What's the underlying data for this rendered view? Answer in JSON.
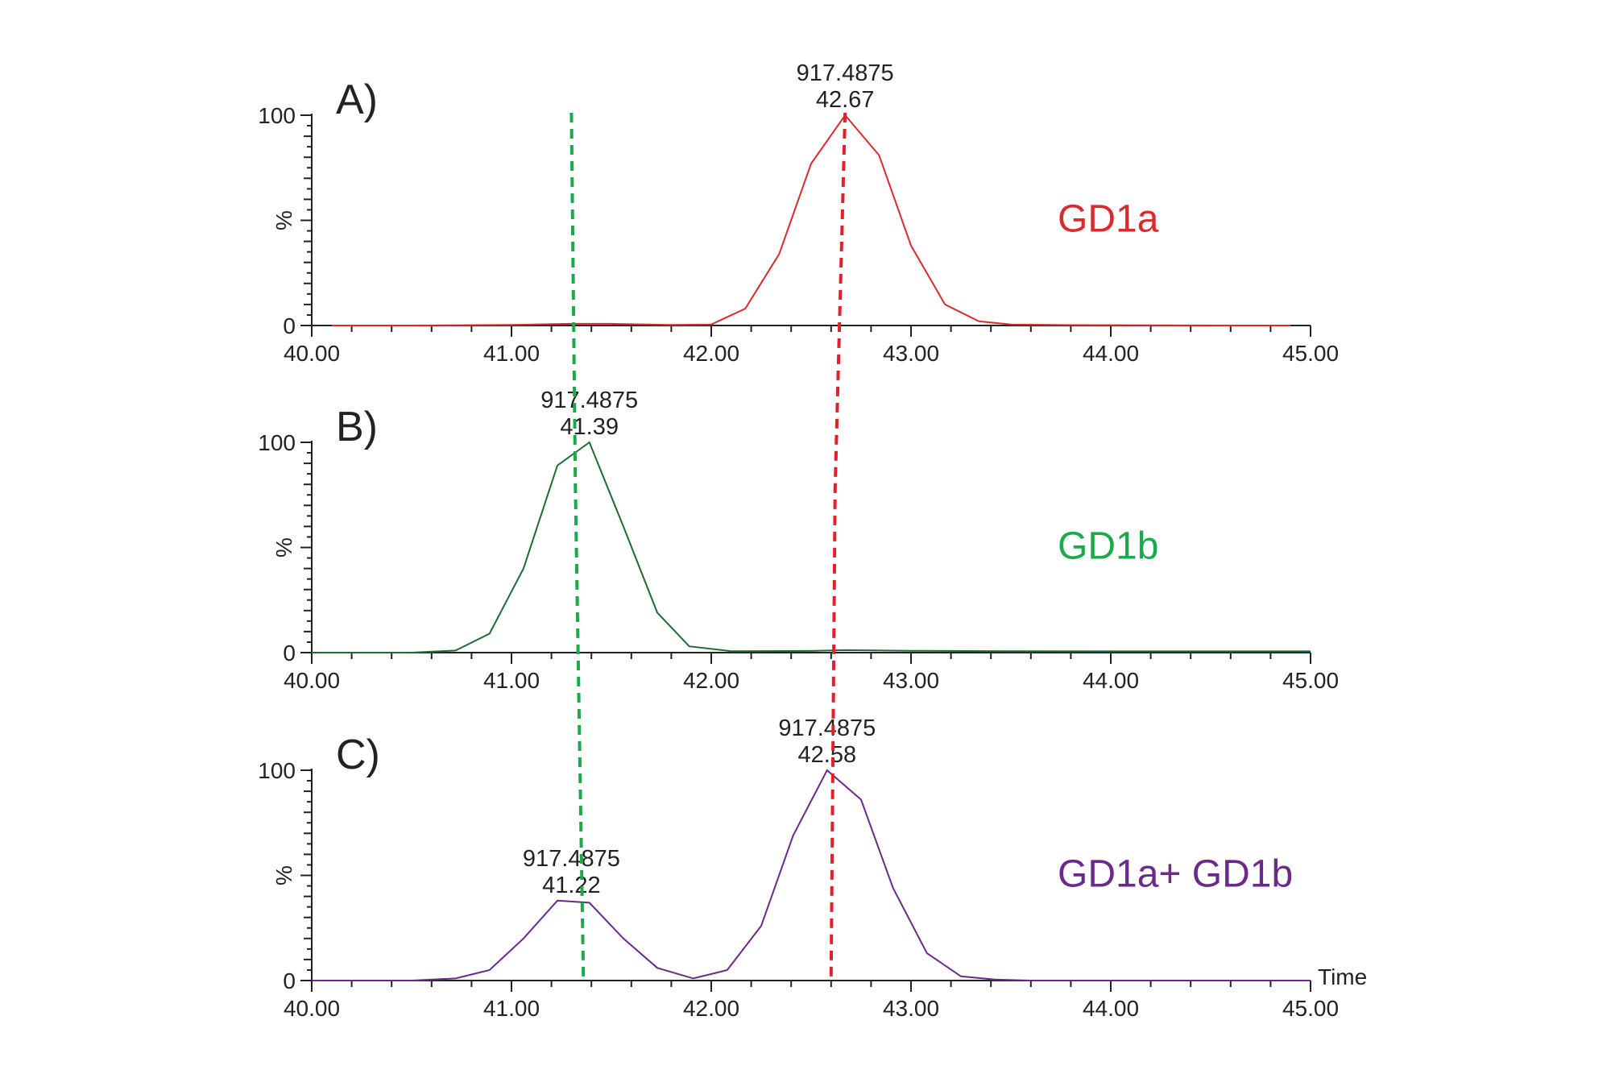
{
  "chart_data": {
    "type": "line",
    "x_axis": {
      "range": [
        40.0,
        45.0
      ],
      "ticks": [
        40.0,
        41.0,
        42.0,
        43.0,
        44.0,
        45.0
      ],
      "tick_labels": [
        "40.00",
        "41.00",
        "42.00",
        "43.00",
        "44.00",
        "45.00"
      ],
      "label": "Time"
    },
    "y_axis": {
      "range": [
        0,
        100
      ],
      "ticks": [
        0,
        100
      ],
      "tick_labels": [
        "0",
        "100"
      ],
      "label": "%"
    },
    "grid": false,
    "reference_lines": [
      {
        "color": "#1aaa4a",
        "style": "dashed",
        "x_values": [
          41.3,
          41.32,
          41.36
        ]
      },
      {
        "color": "#e0202a",
        "style": "dashed",
        "x_values": [
          42.67,
          42.62,
          42.6
        ]
      }
    ],
    "panels": [
      {
        "letter": "A)",
        "compound": "GD1a",
        "color": "#d92b2b",
        "label_color": "#d92b2b",
        "peak_annotations": [
          {
            "mz": "917.4875",
            "rt": "42.67",
            "x": 42.67,
            "y": 100
          }
        ],
        "x": [
          40.1,
          40.5,
          41.0,
          41.3,
          41.5,
          41.8,
          42.0,
          42.17,
          42.34,
          42.5,
          42.67,
          42.84,
          43.0,
          43.17,
          43.34,
          43.5,
          43.8,
          44.2,
          44.6,
          44.9
        ],
        "y": [
          0,
          0,
          0.3,
          0.8,
          0.8,
          0.3,
          0.5,
          8,
          34,
          77,
          100,
          81,
          38,
          10,
          2,
          0.5,
          0.2,
          0.1,
          0,
          0
        ]
      },
      {
        "letter": "B)",
        "compound": "GD1b",
        "color": "#1e6b35",
        "label_color": "#1aaa4a",
        "peak_annotations": [
          {
            "mz": "917.4875",
            "rt": "41.39",
            "x": 41.39,
            "y": 100
          }
        ],
        "x": [
          40.0,
          40.5,
          40.72,
          40.89,
          41.06,
          41.23,
          41.39,
          41.56,
          41.73,
          41.89,
          42.1,
          42.5,
          42.67,
          43.0,
          43.5,
          44.0,
          44.5,
          45.0
        ],
        "y": [
          0,
          0,
          1,
          9,
          40,
          89,
          100,
          60,
          19,
          3,
          0.7,
          0.8,
          1.2,
          0.9,
          0.7,
          0.6,
          0.6,
          0.6
        ]
      },
      {
        "letter": "C)",
        "compound": "GD1a+ GD1b",
        "color": "#6a2a8a",
        "label_color": "#6a2a8a",
        "peak_annotations": [
          {
            "mz": "917.4875",
            "rt": "42.58",
            "x": 42.58,
            "y": 100
          },
          {
            "mz": "917.4875",
            "rt": "41.22",
            "x": 41.3,
            "y": 38
          }
        ],
        "x": [
          40.0,
          40.5,
          40.72,
          40.89,
          41.06,
          41.23,
          41.39,
          41.56,
          41.73,
          41.91,
          42.08,
          42.25,
          42.41,
          42.58,
          42.75,
          42.91,
          43.08,
          43.25,
          43.42,
          43.6,
          44.0,
          44.5,
          45.0
        ],
        "y": [
          0,
          0,
          1,
          5,
          20,
          38,
          37,
          20,
          6,
          1,
          5,
          26,
          69,
          100,
          86,
          44,
          13,
          2,
          0.5,
          0,
          0,
          0,
          0
        ]
      }
    ]
  }
}
